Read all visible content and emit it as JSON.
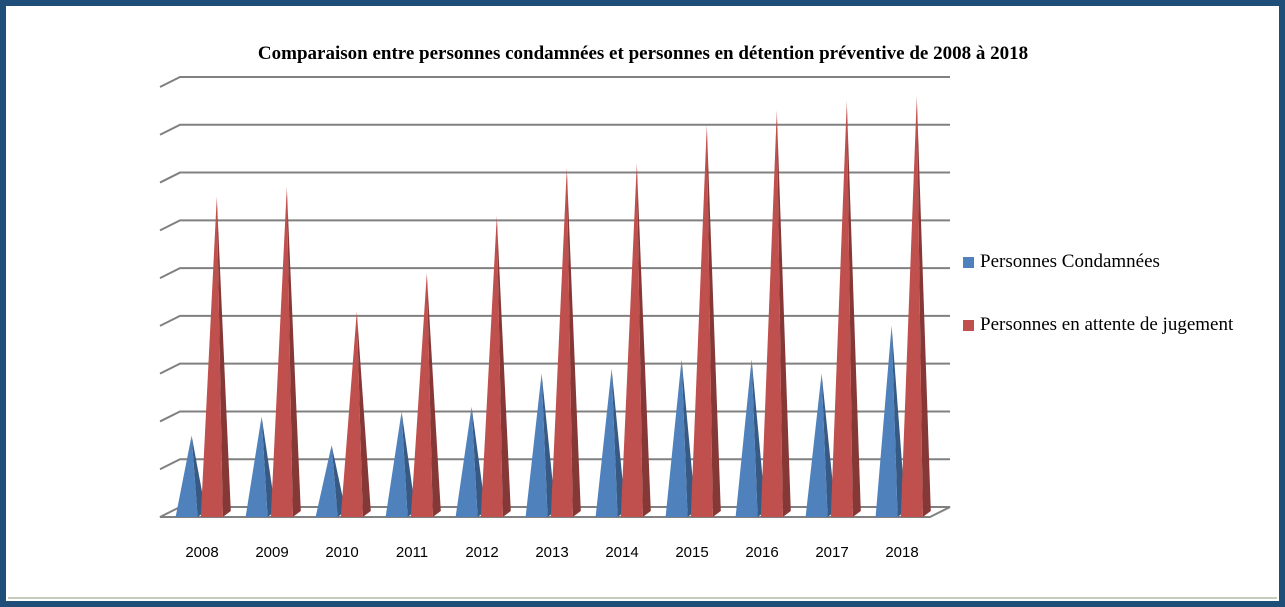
{
  "chart_data": {
    "type": "pyramid3d",
    "title": "Comparaison entre personnes condamnées et personnes en détention préventive de 2008 à 2018",
    "categories": [
      "2008",
      "2009",
      "2010",
      "2011",
      "2012",
      "2013",
      "2014",
      "2015",
      "2016",
      "2017",
      "2018"
    ],
    "series": [
      {
        "name": "Personnes Condamnées",
        "color": "#4f81bd",
        "values": [
          1.6,
          2.0,
          1.4,
          2.1,
          2.2,
          2.9,
          3.0,
          3.2,
          3.2,
          2.9,
          3.9
        ]
      },
      {
        "name": "Personnes en attente de jugement",
        "color": "#c0504d",
        "values": [
          6.6,
          6.8,
          4.2,
          5.0,
          6.2,
          7.2,
          7.3,
          8.1,
          8.4,
          8.6,
          8.7
        ]
      }
    ],
    "ylim": [
      0,
      9
    ],
    "yticks": [
      0,
      1,
      2,
      3,
      4,
      5,
      6,
      7,
      8,
      9
    ],
    "grid": true,
    "legend": "right"
  }
}
